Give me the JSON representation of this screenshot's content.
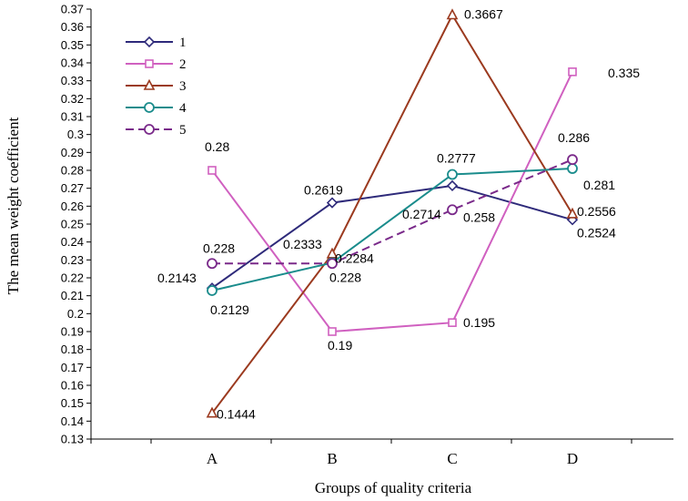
{
  "chart_data": {
    "type": "line",
    "title": "",
    "xlabel": "Groups of quality criteria",
    "ylabel": "The mean weight coefficient",
    "categories": [
      "A",
      "B",
      "C",
      "D"
    ],
    "ylim": [
      0.13,
      0.37
    ],
    "yticks": [
      "0.13",
      "0.14",
      "0.15",
      "0.16",
      "0.17",
      "0.18",
      "0.19",
      "0.2",
      "0.21",
      "0.22",
      "0.23",
      "0.24",
      "0.25",
      "0.26",
      "0.27",
      "0.28",
      "0.29",
      "0.3",
      "0.31",
      "0.32",
      "0.33",
      "0.34",
      "0.35",
      "0.36",
      "0.37"
    ],
    "grid": false,
    "legend_position": "top-left",
    "series": [
      {
        "name": "1",
        "values": [
          0.2143,
          0.2619,
          0.2714,
          0.2524
        ],
        "labels": [
          "0.2143",
          "0.2619",
          "0.2714",
          "0.2524"
        ],
        "color": "#2e2a7a",
        "marker": "diamond",
        "dashed": false
      },
      {
        "name": "2",
        "values": [
          0.28,
          0.19,
          0.195,
          0.335
        ],
        "labels": [
          "0.28",
          "0.19",
          "0.195",
          "0.335"
        ],
        "color": "#d060c0",
        "marker": "square",
        "dashed": false
      },
      {
        "name": "3",
        "values": [
          0.1444,
          0.2333,
          0.3667,
          0.2556
        ],
        "labels": [
          "0.1444",
          "0.2333",
          "0.3667",
          "0.2556"
        ],
        "color": "#9b3a1f",
        "marker": "triangle",
        "dashed": false
      },
      {
        "name": "4",
        "values": [
          0.2129,
          0.2284,
          0.2777,
          0.281
        ],
        "labels": [
          "0.2129",
          "0.2284",
          "0.2777",
          "0.281"
        ],
        "color": "#1a8c8c",
        "marker": "circle",
        "dashed": false
      },
      {
        "name": "5",
        "values": [
          0.228,
          0.228,
          0.258,
          0.286
        ],
        "labels": [
          "0.228",
          "0.228",
          "0.258",
          "0.286"
        ],
        "color": "#7a2a8a",
        "marker": "circle",
        "dashed": true
      }
    ]
  }
}
